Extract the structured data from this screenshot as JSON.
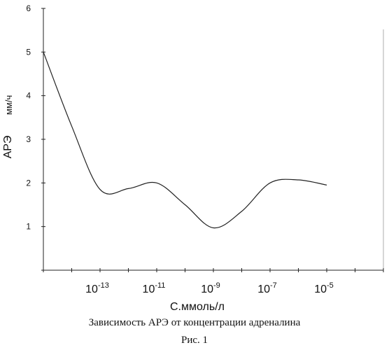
{
  "chart_data": {
    "type": "line",
    "xlabel": "С.ммоль/л",
    "ylabel_main": "АРЭ",
    "ylabel_unit": "мм/ч",
    "x_scale": "log",
    "xlim_exponent": [
      -15,
      -3
    ],
    "ylim": [
      0,
      6
    ],
    "y_ticks": [
      1,
      2,
      3,
      4,
      5,
      6
    ],
    "x_ticks": [
      {
        "base": "10",
        "exp": "-13",
        "exponent": -13
      },
      {
        "base": "10",
        "exp": "-11",
        "exponent": -11
      },
      {
        "base": "10",
        "exp": "-9",
        "exponent": -9
      },
      {
        "base": "10",
        "exp": "-7",
        "exponent": -7
      },
      {
        "base": "10",
        "exp": "-5",
        "exponent": -5
      }
    ],
    "grid": false,
    "series": [
      {
        "color": "#222222",
        "points": [
          {
            "x": "1e-15",
            "y": 5.0
          },
          {
            "x": "1e-14",
            "y": 3.3
          },
          {
            "x": "1e-13",
            "y": 1.85
          },
          {
            "x": "1e-12",
            "y": 1.87
          },
          {
            "x": "1e-11",
            "y": 2.0
          },
          {
            "x": "1e-10",
            "y": 1.5
          },
          {
            "x": "1e-9",
            "y": 0.97
          },
          {
            "x": "1e-8",
            "y": 1.35
          },
          {
            "x": "1e-7",
            "y": 2.0
          },
          {
            "x": "1e-6",
            "y": 2.07
          },
          {
            "x": "1e-5",
            "y": 1.95
          }
        ]
      }
    ]
  },
  "caption": "Зависимость АРЭ от концентрации адреналина",
  "figure_label": "Рис. 1"
}
